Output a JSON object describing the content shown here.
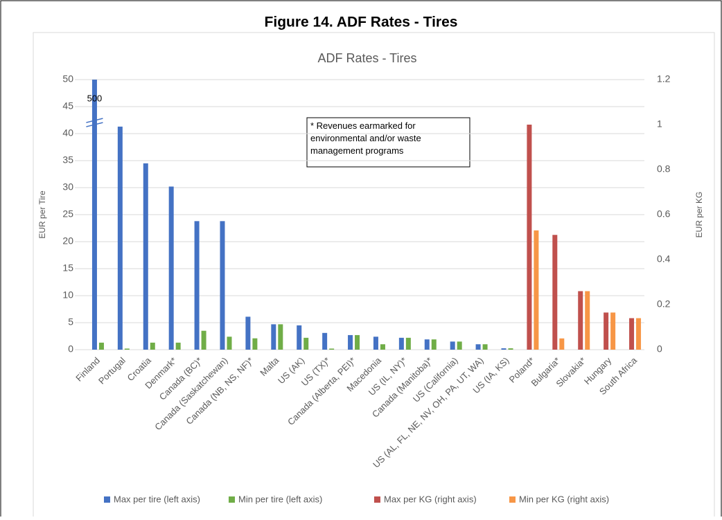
{
  "chart_data": {
    "type": "bar",
    "figure_title": "Figure 14. ADF Rates - Tires",
    "title": "ADF Rates - Tires",
    "y_label": "EUR per Tire",
    "y2_label": "EUR per KG",
    "annotation": "* Revenues earmarked for environmental and/or waste management programs",
    "categories": [
      "Finland",
      "Portugal",
      "Croatia",
      "Denmark*",
      "Canada (BC)*",
      "Canada (Saskatchewan)",
      "Canada (NB, NS, NF)*",
      "Malta",
      "US (AK)",
      "US (TX)*",
      "Canada (Alberta, PEI)*",
      "Macedonia",
      "US (IL, NY)*",
      "Canada (Manitoba)*",
      "US (California)",
      "US (AL, FL, NE, NV, OH, PA, UT, WA)",
      "US (IA, KS)",
      "Poland*",
      "Bulgaria*",
      "Slovakia*",
      "Hungary",
      "South Africa"
    ],
    "series": [
      {
        "name": "Max per tire (left axis)",
        "color": "#4472c4",
        "axis": "y",
        "values": [
          500,
          41.3,
          34.5,
          30.2,
          23.8,
          23.8,
          6.1,
          4.7,
          4.5,
          3.1,
          2.7,
          2.4,
          2.2,
          1.9,
          1.5,
          1.0,
          0.25,
          null,
          null,
          null,
          null,
          null
        ],
        "value_labels": [
          "500",
          null,
          null,
          null,
          null,
          null,
          null,
          null,
          null,
          null,
          null,
          null,
          null,
          null,
          null,
          null,
          null,
          null,
          null,
          null,
          null,
          null
        ]
      },
      {
        "name": "Min per tire (left axis)",
        "color": "#70ad47",
        "axis": "y",
        "values": [
          1.3,
          0.2,
          1.3,
          1.3,
          3.5,
          2.4,
          2.1,
          4.7,
          2.2,
          0.2,
          2.7,
          1.0,
          2.2,
          1.9,
          1.5,
          1.0,
          0.25,
          null,
          null,
          null,
          null,
          null
        ]
      },
      {
        "name": "Max per KG (right axis)",
        "color": "#c0504d",
        "axis": "y2",
        "values": [
          null,
          null,
          null,
          null,
          null,
          null,
          null,
          null,
          null,
          null,
          null,
          null,
          null,
          null,
          null,
          null,
          null,
          1.0,
          0.51,
          0.26,
          0.165,
          0.14
        ]
      },
      {
        "name": "Min per KG (right axis)",
        "color": "#f79646",
        "axis": "y2",
        "values": [
          null,
          null,
          null,
          null,
          null,
          null,
          null,
          null,
          null,
          null,
          null,
          null,
          null,
          null,
          null,
          null,
          null,
          0.53,
          0.05,
          0.26,
          0.165,
          0.14
        ]
      }
    ],
    "ylim": [
      0,
      50
    ],
    "yticks": [
      0,
      5,
      10,
      15,
      20,
      25,
      30,
      35,
      40,
      45,
      50
    ],
    "y2lim": [
      0,
      1.2
    ],
    "y2ticks": [
      0,
      0.2,
      0.4,
      0.6,
      0.8,
      1,
      1.2
    ],
    "grid": true,
    "legend": "bottom"
  }
}
